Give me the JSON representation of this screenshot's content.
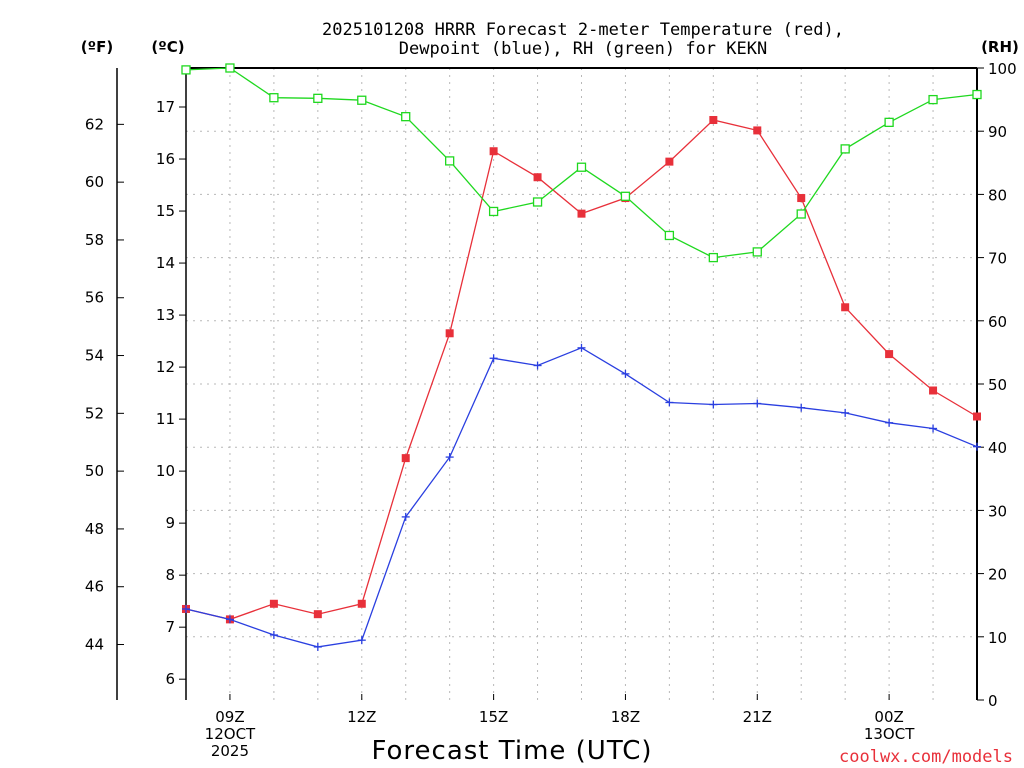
{
  "chart_data": {
    "type": "line",
    "title": [
      "2025101208 HRRR Forecast 2-meter Temperature (red),",
      "Dewpoint (blue), RH (green) for KEKN"
    ],
    "xlabel": "Forecast Time (UTC)",
    "units": {
      "fahrenheit": "(ºF)",
      "celsius": "(ºC)",
      "rh": "(RH)"
    },
    "x_hours": [
      8,
      9,
      10,
      11,
      12,
      13,
      14,
      15,
      16,
      17,
      18,
      19,
      20,
      21,
      22,
      23,
      24,
      25,
      26
    ],
    "xlim": [
      8,
      26
    ],
    "x_ticks": [
      {
        "hour": 9,
        "lines": [
          "09Z",
          "12OCT",
          "2025"
        ]
      },
      {
        "hour": 12,
        "lines": [
          "12Z"
        ]
      },
      {
        "hour": 15,
        "lines": [
          "15Z"
        ]
      },
      {
        "hour": 18,
        "lines": [
          "18Z"
        ]
      },
      {
        "hour": 21,
        "lines": [
          "21Z"
        ]
      },
      {
        "hour": 24,
        "lines": [
          "00Z",
          "13OCT"
        ]
      }
    ],
    "celsius_axis": {
      "range": [
        5.6,
        17.75
      ],
      "ticks": [
        "6",
        "7",
        "8",
        "9",
        "10",
        "11",
        "12",
        "13",
        "14",
        "15",
        "16",
        "17"
      ]
    },
    "fahrenheit_axis": {
      "ticks": [
        "44",
        "46",
        "48",
        "50",
        "52",
        "54",
        "56",
        "58",
        "60",
        "62"
      ]
    },
    "rh_axis": {
      "range": [
        0,
        100
      ],
      "ticks": [
        "0",
        "10",
        "20",
        "30",
        "40",
        "50",
        "60",
        "70",
        "80",
        "90",
        "100"
      ]
    },
    "grid": true,
    "series": [
      {
        "name": "Temperature",
        "color": "#e8303a",
        "marker": "filled-square",
        "axis": "celsius",
        "values": [
          7.35,
          7.15,
          7.45,
          7.25,
          7.45,
          10.25,
          12.65,
          16.15,
          15.65,
          14.95,
          15.25,
          15.95,
          16.75,
          16.55,
          15.25,
          13.15,
          12.25,
          11.55,
          11.05
        ]
      },
      {
        "name": "Dewpoint",
        "color": "#2a3fe0",
        "marker": "plus",
        "axis": "celsius",
        "values": [
          7.35,
          7.15,
          6.85,
          6.62,
          6.75,
          9.12,
          10.27,
          12.17,
          12.03,
          12.37,
          11.87,
          11.32,
          11.28,
          11.3,
          11.22,
          11.12,
          10.93,
          10.82,
          10.47
        ]
      },
      {
        "name": "RH",
        "color": "#1fd81f",
        "marker": "open-square",
        "axis": "rh",
        "values": [
          99.7,
          100,
          95.3,
          95.2,
          94.9,
          92.3,
          85.3,
          77.3,
          78.8,
          84.3,
          79.7,
          73.5,
          70,
          70.9,
          76.9,
          87.2,
          91.4,
          95,
          95.8
        ]
      }
    ]
  },
  "credit": "coolwx.com/models"
}
